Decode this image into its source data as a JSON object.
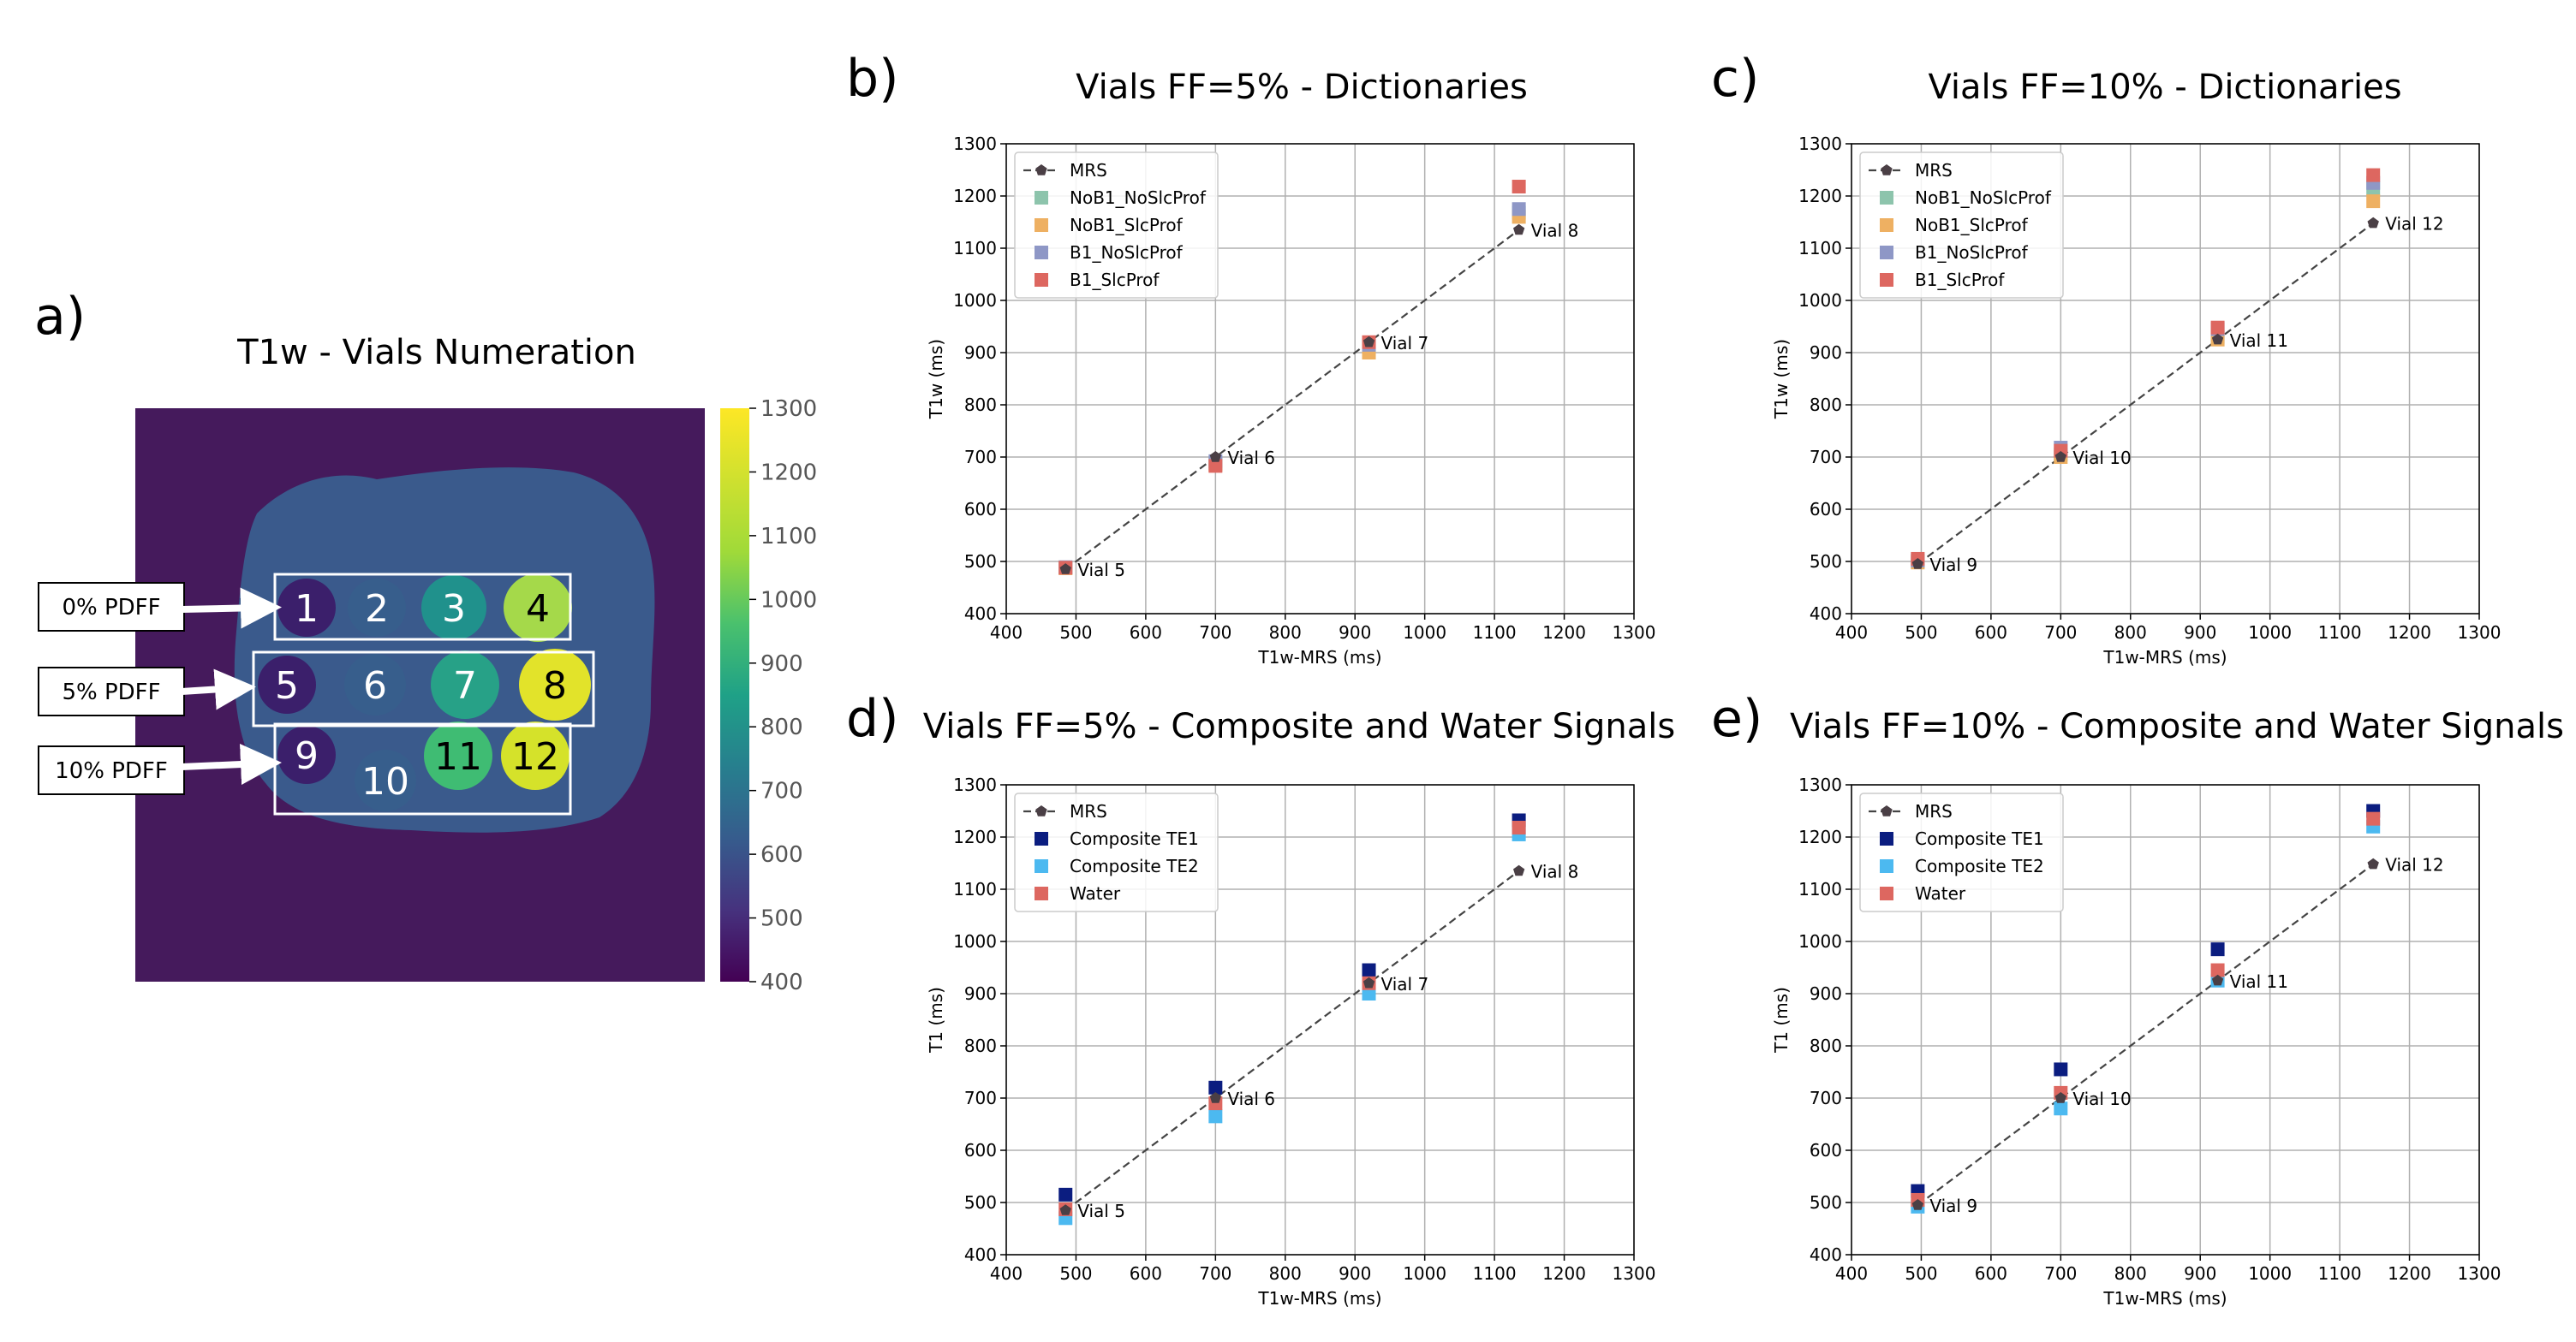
{
  "panel_labels": {
    "a": "a)",
    "b": "b)",
    "c": "c)",
    "d": "d)",
    "e": "e)"
  },
  "map": {
    "title": "T1w - Vials Numeration",
    "colorbar_ticks": [
      "400",
      "500",
      "600",
      "700",
      "800",
      "900",
      "1000",
      "1100",
      "1200",
      "1300"
    ],
    "row_labels": [
      "0% PDFF",
      "5% PDFF",
      "10% PDFF"
    ],
    "vials": [
      {
        "id": "1",
        "color": "#3b1f6b"
      },
      {
        "id": "2",
        "color": "#375e8c"
      },
      {
        "id": "3",
        "color": "#20918c"
      },
      {
        "id": "4",
        "color": "#a5d94a"
      },
      {
        "id": "5",
        "color": "#3b1f6b"
      },
      {
        "id": "6",
        "color": "#375e8c"
      },
      {
        "id": "7",
        "color": "#27a187"
      },
      {
        "id": "8",
        "color": "#e2e32a"
      },
      {
        "id": "9",
        "color": "#3b1f6b"
      },
      {
        "id": "10",
        "color": "#375e8c"
      },
      {
        "id": "11",
        "color": "#3fbc73"
      },
      {
        "id": "12",
        "color": "#d5e22a"
      }
    ],
    "colors": {
      "background": "#451a5c",
      "phantom": "#3a5a8c"
    }
  },
  "chart_data": [
    {
      "id": "b",
      "type": "scatter",
      "title": "Vials FF=5% - Dictionaries",
      "xlabel": "T1w-MRS (ms)",
      "ylabel": "T1w (ms)",
      "xlim": [
        400,
        1300
      ],
      "ylim": [
        400,
        1300
      ],
      "xticks": [
        "400",
        "500",
        "600",
        "700",
        "800",
        "900",
        "1000",
        "1100",
        "1200",
        "1300"
      ],
      "yticks": [
        "400",
        "500",
        "600",
        "700",
        "800",
        "900",
        "1000",
        "1100",
        "1200",
        "1300"
      ],
      "grid": true,
      "legend": "top-left",
      "mrs": {
        "name": "MRS",
        "x": [
          485,
          700,
          920,
          1135
        ],
        "y": [
          485,
          700,
          920,
          1135
        ]
      },
      "annotations": [
        {
          "text": "Vial 5",
          "x": 485,
          "y": 485
        },
        {
          "text": "Vial 6",
          "x": 700,
          "y": 700
        },
        {
          "text": "Vial 7",
          "x": 920,
          "y": 920
        },
        {
          "text": "Vial 8",
          "x": 1135,
          "y": 1135
        }
      ],
      "series": [
        {
          "name": "NoB1_NoSlcProf",
          "color": "#8dc4ac",
          "x": [
            485,
            700,
            920,
            1135
          ],
          "y": [
            488,
            688,
            912,
            1168
          ]
        },
        {
          "name": "NoB1_SlcProf",
          "color": "#eeb062",
          "x": [
            485,
            700,
            920,
            1135
          ],
          "y": [
            487,
            685,
            900,
            1160
          ]
        },
        {
          "name": "B1_NoSlcProf",
          "color": "#8e97c6",
          "x": [
            485,
            700,
            920,
            1135
          ],
          "y": [
            489,
            692,
            915,
            1175
          ]
        },
        {
          "name": "B1_SlcProf",
          "color": "#dd6760",
          "x": [
            485,
            700,
            920,
            1135
          ],
          "y": [
            488,
            683,
            920,
            1218
          ]
        }
      ]
    },
    {
      "id": "c",
      "type": "scatter",
      "title": "Vials FF=10% - Dictionaries",
      "xlabel": "T1w-MRS (ms)",
      "ylabel": "T1w (ms)",
      "xlim": [
        400,
        1300
      ],
      "ylim": [
        400,
        1300
      ],
      "xticks": [
        "400",
        "500",
        "600",
        "700",
        "800",
        "900",
        "1000",
        "1100",
        "1200",
        "1300"
      ],
      "yticks": [
        "400",
        "500",
        "600",
        "700",
        "800",
        "900",
        "1000",
        "1100",
        "1200",
        "1300"
      ],
      "grid": true,
      "legend": "top-left",
      "mrs": {
        "name": "MRS",
        "x": [
          495,
          700,
          925,
          1148
        ],
        "y": [
          495,
          700,
          925,
          1148
        ]
      },
      "annotations": [
        {
          "text": "Vial 9",
          "x": 495,
          "y": 495
        },
        {
          "text": "Vial 10",
          "x": 700,
          "y": 700
        },
        {
          "text": "Vial 11",
          "x": 925,
          "y": 925
        },
        {
          "text": "Vial 12",
          "x": 1148,
          "y": 1148
        }
      ],
      "series": [
        {
          "name": "NoB1_NoSlcProf",
          "color": "#8dc4ac",
          "x": [
            495,
            700,
            925,
            1148
          ],
          "y": [
            500,
            705,
            930,
            1215
          ]
        },
        {
          "name": "NoB1_SlcProf",
          "color": "#eeb062",
          "x": [
            495,
            700,
            925,
            1148
          ],
          "y": [
            498,
            700,
            925,
            1190
          ]
        },
        {
          "name": "B1_NoSlcProf",
          "color": "#8e97c6",
          "x": [
            495,
            700,
            925,
            1148
          ],
          "y": [
            502,
            718,
            945,
            1225
          ]
        },
        {
          "name": "B1_SlcProf",
          "color": "#dd6760",
          "x": [
            495,
            700,
            925,
            1148
          ],
          "y": [
            505,
            712,
            948,
            1240
          ]
        }
      ]
    },
    {
      "id": "d",
      "type": "scatter",
      "title": "Vials FF=5% - Composite and Water Signals",
      "xlabel": "T1w-MRS (ms)",
      "ylabel": "T1 (ms)",
      "xlim": [
        400,
        1300
      ],
      "ylim": [
        400,
        1300
      ],
      "xticks": [
        "400",
        "500",
        "600",
        "700",
        "800",
        "900",
        "1000",
        "1100",
        "1200",
        "1300"
      ],
      "yticks": [
        "400",
        "500",
        "600",
        "700",
        "800",
        "900",
        "1000",
        "1100",
        "1200",
        "1300"
      ],
      "grid": true,
      "legend": "top-left",
      "mrs": {
        "name": "MRS",
        "x": [
          485,
          700,
          920,
          1135
        ],
        "y": [
          485,
          700,
          920,
          1135
        ]
      },
      "annotations": [
        {
          "text": "Vial 5",
          "x": 485,
          "y": 485
        },
        {
          "text": "Vial 6",
          "x": 700,
          "y": 700
        },
        {
          "text": "Vial 7",
          "x": 920,
          "y": 920
        },
        {
          "text": "Vial 8",
          "x": 1135,
          "y": 1135
        }
      ],
      "series": [
        {
          "name": "Composite TE1",
          "color": "#0b1d80",
          "x": [
            485,
            700,
            920,
            1135
          ],
          "y": [
            515,
            720,
            945,
            1232
          ]
        },
        {
          "name": "Composite TE2",
          "color": "#4cb9f0",
          "x": [
            485,
            700,
            920,
            1135
          ],
          "y": [
            470,
            665,
            900,
            1205
          ]
        },
        {
          "name": "Water",
          "color": "#dd6760",
          "x": [
            485,
            700,
            920,
            1135
          ],
          "y": [
            487,
            690,
            920,
            1218
          ]
        }
      ]
    },
    {
      "id": "e",
      "type": "scatter",
      "title": "Vials FF=10% - Composite and Water Signals",
      "xlabel": "T1w-MRS (ms)",
      "ylabel": "T1 (ms)",
      "xlim": [
        400,
        1300
      ],
      "ylim": [
        400,
        1300
      ],
      "xticks": [
        "400",
        "500",
        "600",
        "700",
        "800",
        "900",
        "1000",
        "1100",
        "1200",
        "1300"
      ],
      "yticks": [
        "400",
        "500",
        "600",
        "700",
        "800",
        "900",
        "1000",
        "1100",
        "1200",
        "1300"
      ],
      "grid": true,
      "legend": "top-left",
      "mrs": {
        "name": "MRS",
        "x": [
          495,
          700,
          925,
          1148
        ],
        "y": [
          495,
          700,
          925,
          1148
        ]
      },
      "annotations": [
        {
          "text": "Vial 9",
          "x": 495,
          "y": 495
        },
        {
          "text": "Vial 10",
          "x": 700,
          "y": 700
        },
        {
          "text": "Vial 11",
          "x": 925,
          "y": 925
        },
        {
          "text": "Vial 12",
          "x": 1148,
          "y": 1148
        }
      ],
      "series": [
        {
          "name": "Composite TE1",
          "color": "#0b1d80",
          "x": [
            495,
            700,
            925,
            1148
          ],
          "y": [
            522,
            755,
            985,
            1250
          ]
        },
        {
          "name": "Composite TE2",
          "color": "#4cb9f0",
          "x": [
            495,
            700,
            925,
            1148
          ],
          "y": [
            492,
            680,
            925,
            1220
          ]
        },
        {
          "name": "Water",
          "color": "#dd6760",
          "x": [
            495,
            700,
            925,
            1148
          ],
          "y": [
            505,
            710,
            945,
            1235
          ]
        }
      ]
    }
  ]
}
